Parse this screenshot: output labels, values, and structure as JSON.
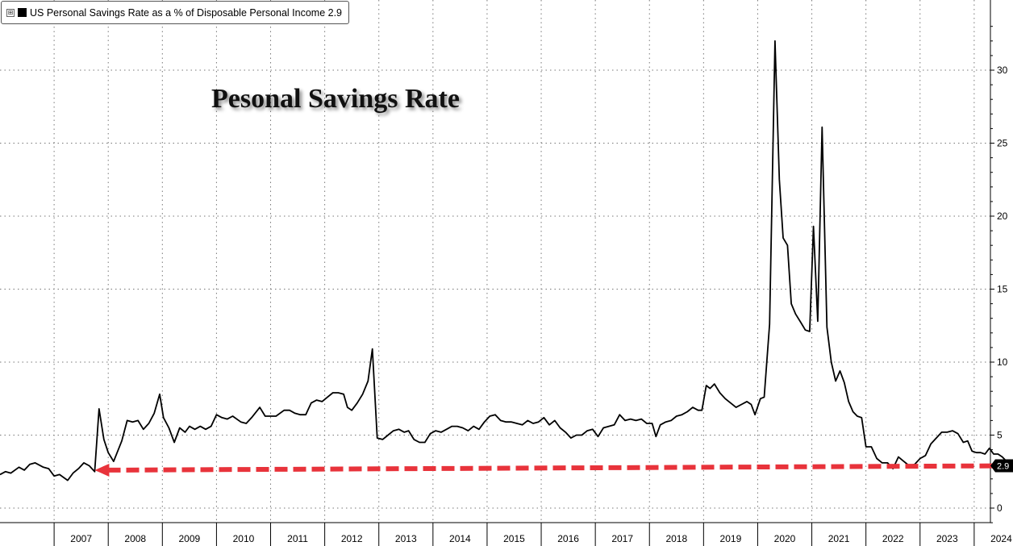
{
  "legend": {
    "toggle_glyph": "⊞",
    "label": "US Personal Savings Rate as a % of Disposable Personal Income 2.9"
  },
  "chart_data": {
    "type": "line",
    "title": "Pesonal Savings Rate",
    "xlabel": "",
    "ylabel": "",
    "ylim": [
      -1,
      34
    ],
    "yticks": [
      0,
      5,
      10,
      15,
      20,
      25,
      30
    ],
    "xlim": [
      2006.5,
      2024.8
    ],
    "xtick_labels": [
      "2007",
      "2008",
      "2009",
      "2010",
      "2011",
      "2012",
      "2013",
      "2014",
      "2015",
      "2016",
      "2017",
      "2018",
      "2019",
      "2020",
      "2021",
      "2022",
      "2023",
      "2024"
    ],
    "grid": true,
    "last_value_label": "2.9",
    "series": [
      {
        "name": "US Personal Savings Rate as a % of Disposable Personal Income",
        "color": "#000000",
        "points": [
          [
            2006.5,
            2.3
          ],
          [
            2006.6,
            2.5
          ],
          [
            2006.7,
            2.4
          ],
          [
            2006.85,
            2.8
          ],
          [
            2006.95,
            2.6
          ],
          [
            2007.05,
            3.0
          ],
          [
            2007.15,
            3.1
          ],
          [
            2007.3,
            2.8
          ],
          [
            2007.4,
            2.7
          ],
          [
            2007.5,
            2.2
          ],
          [
            2007.6,
            2.3
          ],
          [
            2007.75,
            1.9
          ],
          [
            2007.85,
            2.4
          ],
          [
            2007.95,
            2.7
          ],
          [
            2008.05,
            3.1
          ],
          [
            2008.15,
            2.9
          ],
          [
            2008.25,
            2.5
          ],
          [
            2008.33,
            6.8
          ],
          [
            2008.42,
            4.7
          ],
          [
            2008.5,
            3.8
          ],
          [
            2008.6,
            3.2
          ],
          [
            2008.75,
            4.6
          ],
          [
            2008.85,
            6.0
          ],
          [
            2008.95,
            5.9
          ],
          [
            2009.05,
            6.0
          ],
          [
            2009.15,
            5.4
          ],
          [
            2009.25,
            5.8
          ],
          [
            2009.35,
            6.5
          ],
          [
            2009.45,
            7.8
          ],
          [
            2009.52,
            6.2
          ],
          [
            2009.62,
            5.5
          ],
          [
            2009.72,
            4.5
          ],
          [
            2009.82,
            5.5
          ],
          [
            2009.92,
            5.2
          ],
          [
            2010.0,
            5.6
          ],
          [
            2010.1,
            5.4
          ],
          [
            2010.2,
            5.6
          ],
          [
            2010.3,
            5.4
          ],
          [
            2010.4,
            5.6
          ],
          [
            2010.5,
            6.4
          ],
          [
            2010.6,
            6.2
          ],
          [
            2010.7,
            6.1
          ],
          [
            2010.8,
            6.3
          ],
          [
            2010.95,
            5.9
          ],
          [
            2011.05,
            5.8
          ],
          [
            2011.15,
            6.2
          ],
          [
            2011.3,
            6.9
          ],
          [
            2011.4,
            6.3
          ],
          [
            2011.5,
            6.3
          ],
          [
            2011.6,
            6.3
          ],
          [
            2011.75,
            6.7
          ],
          [
            2011.85,
            6.7
          ],
          [
            2011.95,
            6.5
          ],
          [
            2012.05,
            6.4
          ],
          [
            2012.15,
            6.4
          ],
          [
            2012.25,
            7.2
          ],
          [
            2012.35,
            7.4
          ],
          [
            2012.45,
            7.3
          ],
          [
            2012.55,
            7.6
          ],
          [
            2012.65,
            7.9
          ],
          [
            2012.75,
            7.9
          ],
          [
            2012.85,
            7.8
          ],
          [
            2012.92,
            6.9
          ],
          [
            2013.0,
            6.7
          ],
          [
            2013.1,
            7.2
          ],
          [
            2013.2,
            7.8
          ],
          [
            2013.3,
            8.7
          ],
          [
            2013.38,
            10.9
          ],
          [
            2013.47,
            4.8
          ],
          [
            2013.57,
            4.7
          ],
          [
            2013.67,
            5.0
          ],
          [
            2013.77,
            5.3
          ],
          [
            2013.87,
            5.4
          ],
          [
            2013.97,
            5.2
          ],
          [
            2014.05,
            5.3
          ],
          [
            2014.15,
            4.7
          ],
          [
            2014.25,
            4.5
          ],
          [
            2014.35,
            4.5
          ],
          [
            2014.45,
            5.1
          ],
          [
            2014.55,
            5.3
          ],
          [
            2014.65,
            5.2
          ],
          [
            2014.75,
            5.4
          ],
          [
            2014.85,
            5.6
          ],
          [
            2014.95,
            5.6
          ],
          [
            2015.05,
            5.5
          ],
          [
            2015.15,
            5.3
          ],
          [
            2015.25,
            5.6
          ],
          [
            2015.35,
            5.4
          ],
          [
            2015.45,
            5.9
          ],
          [
            2015.55,
            6.3
          ],
          [
            2015.65,
            6.4
          ],
          [
            2015.75,
            6.0
          ],
          [
            2015.85,
            5.9
          ],
          [
            2015.95,
            5.9
          ],
          [
            2016.05,
            5.8
          ],
          [
            2016.15,
            5.7
          ],
          [
            2016.25,
            6.0
          ],
          [
            2016.35,
            5.8
          ],
          [
            2016.45,
            5.9
          ],
          [
            2016.55,
            6.2
          ],
          [
            2016.65,
            5.7
          ],
          [
            2016.75,
            6.0
          ],
          [
            2016.85,
            5.5
          ],
          [
            2016.95,
            5.2
          ],
          [
            2017.05,
            4.8
          ],
          [
            2017.15,
            5.0
          ],
          [
            2017.25,
            5.0
          ],
          [
            2017.35,
            5.3
          ],
          [
            2017.45,
            5.4
          ],
          [
            2017.55,
            4.9
          ],
          [
            2017.65,
            5.5
          ],
          [
            2017.75,
            5.6
          ],
          [
            2017.85,
            5.7
          ],
          [
            2017.95,
            6.4
          ],
          [
            2018.05,
            6.0
          ],
          [
            2018.15,
            6.1
          ],
          [
            2018.25,
            6.0
          ],
          [
            2018.35,
            6.1
          ],
          [
            2018.45,
            5.8
          ],
          [
            2018.55,
            5.8
          ],
          [
            2018.62,
            4.9
          ],
          [
            2018.7,
            5.7
          ],
          [
            2018.8,
            5.9
          ],
          [
            2018.9,
            6.0
          ],
          [
            2019.0,
            6.3
          ],
          [
            2019.1,
            6.4
          ],
          [
            2019.2,
            6.6
          ],
          [
            2019.3,
            6.9
          ],
          [
            2019.4,
            6.7
          ],
          [
            2019.47,
            6.7
          ],
          [
            2019.55,
            8.4
          ],
          [
            2019.62,
            8.2
          ],
          [
            2019.7,
            8.5
          ],
          [
            2019.8,
            7.9
          ],
          [
            2019.9,
            7.5
          ],
          [
            2020.0,
            7.2
          ],
          [
            2020.1,
            6.9
          ],
          [
            2020.2,
            7.1
          ],
          [
            2020.3,
            7.3
          ],
          [
            2020.38,
            7.1
          ],
          [
            2020.45,
            6.4
          ],
          [
            2020.55,
            7.5
          ],
          [
            2020.62,
            7.6
          ],
          [
            2020.72,
            12.6
          ],
          [
            2020.82,
            32.0
          ],
          [
            2020.9,
            22.5
          ],
          [
            2020.97,
            18.5
          ],
          [
            2021.05,
            18.0
          ],
          [
            2021.12,
            14.0
          ],
          [
            2021.2,
            13.3
          ],
          [
            2021.3,
            12.7
          ],
          [
            2021.38,
            12.2
          ],
          [
            2021.46,
            12.1
          ],
          [
            2021.53,
            19.3
          ],
          [
            2021.61,
            12.8
          ],
          [
            2021.69,
            26.1
          ],
          [
            2021.78,
            12.4
          ],
          [
            2021.86,
            10.0
          ],
          [
            2021.94,
            8.7
          ],
          [
            2022.02,
            9.4
          ],
          [
            2022.1,
            8.6
          ],
          [
            2022.18,
            7.3
          ],
          [
            2022.26,
            6.6
          ],
          [
            2022.34,
            6.3
          ],
          [
            2022.42,
            6.2
          ],
          [
            2022.5,
            4.2
          ],
          [
            2022.6,
            4.2
          ],
          [
            2022.7,
            3.4
          ],
          [
            2022.8,
            3.1
          ],
          [
            2022.9,
            3.1
          ],
          [
            2023.0,
            2.7
          ],
          [
            2023.1,
            3.5
          ],
          [
            2023.2,
            3.2
          ],
          [
            2023.3,
            2.9
          ],
          [
            2023.4,
            3.0
          ],
          [
            2023.5,
            3.4
          ],
          [
            2023.6,
            3.6
          ],
          [
            2023.7,
            4.4
          ],
          [
            2023.8,
            4.8
          ],
          [
            2023.9,
            5.2
          ],
          [
            2024.0,
            5.2
          ],
          [
            2024.1,
            5.3
          ],
          [
            2024.2,
            5.1
          ],
          [
            2024.3,
            4.5
          ],
          [
            2024.38,
            4.6
          ],
          [
            2024.46,
            3.9
          ],
          [
            2024.54,
            3.8
          ],
          [
            2024.62,
            3.8
          ],
          [
            2024.7,
            3.7
          ],
          [
            2024.78,
            4.1
          ],
          [
            2024.86,
            3.7
          ],
          [
            2024.94,
            3.7
          ],
          [
            2025.02,
            3.5
          ],
          [
            2025.1,
            3.2
          ],
          [
            2025.18,
            2.9
          ]
        ]
      }
    ],
    "annotations": [
      {
        "type": "arrow",
        "style": "dashed",
        "color": "#e8333b",
        "from": [
          2025.18,
          2.9
        ],
        "to": [
          2008.25,
          2.6
        ]
      }
    ]
  }
}
